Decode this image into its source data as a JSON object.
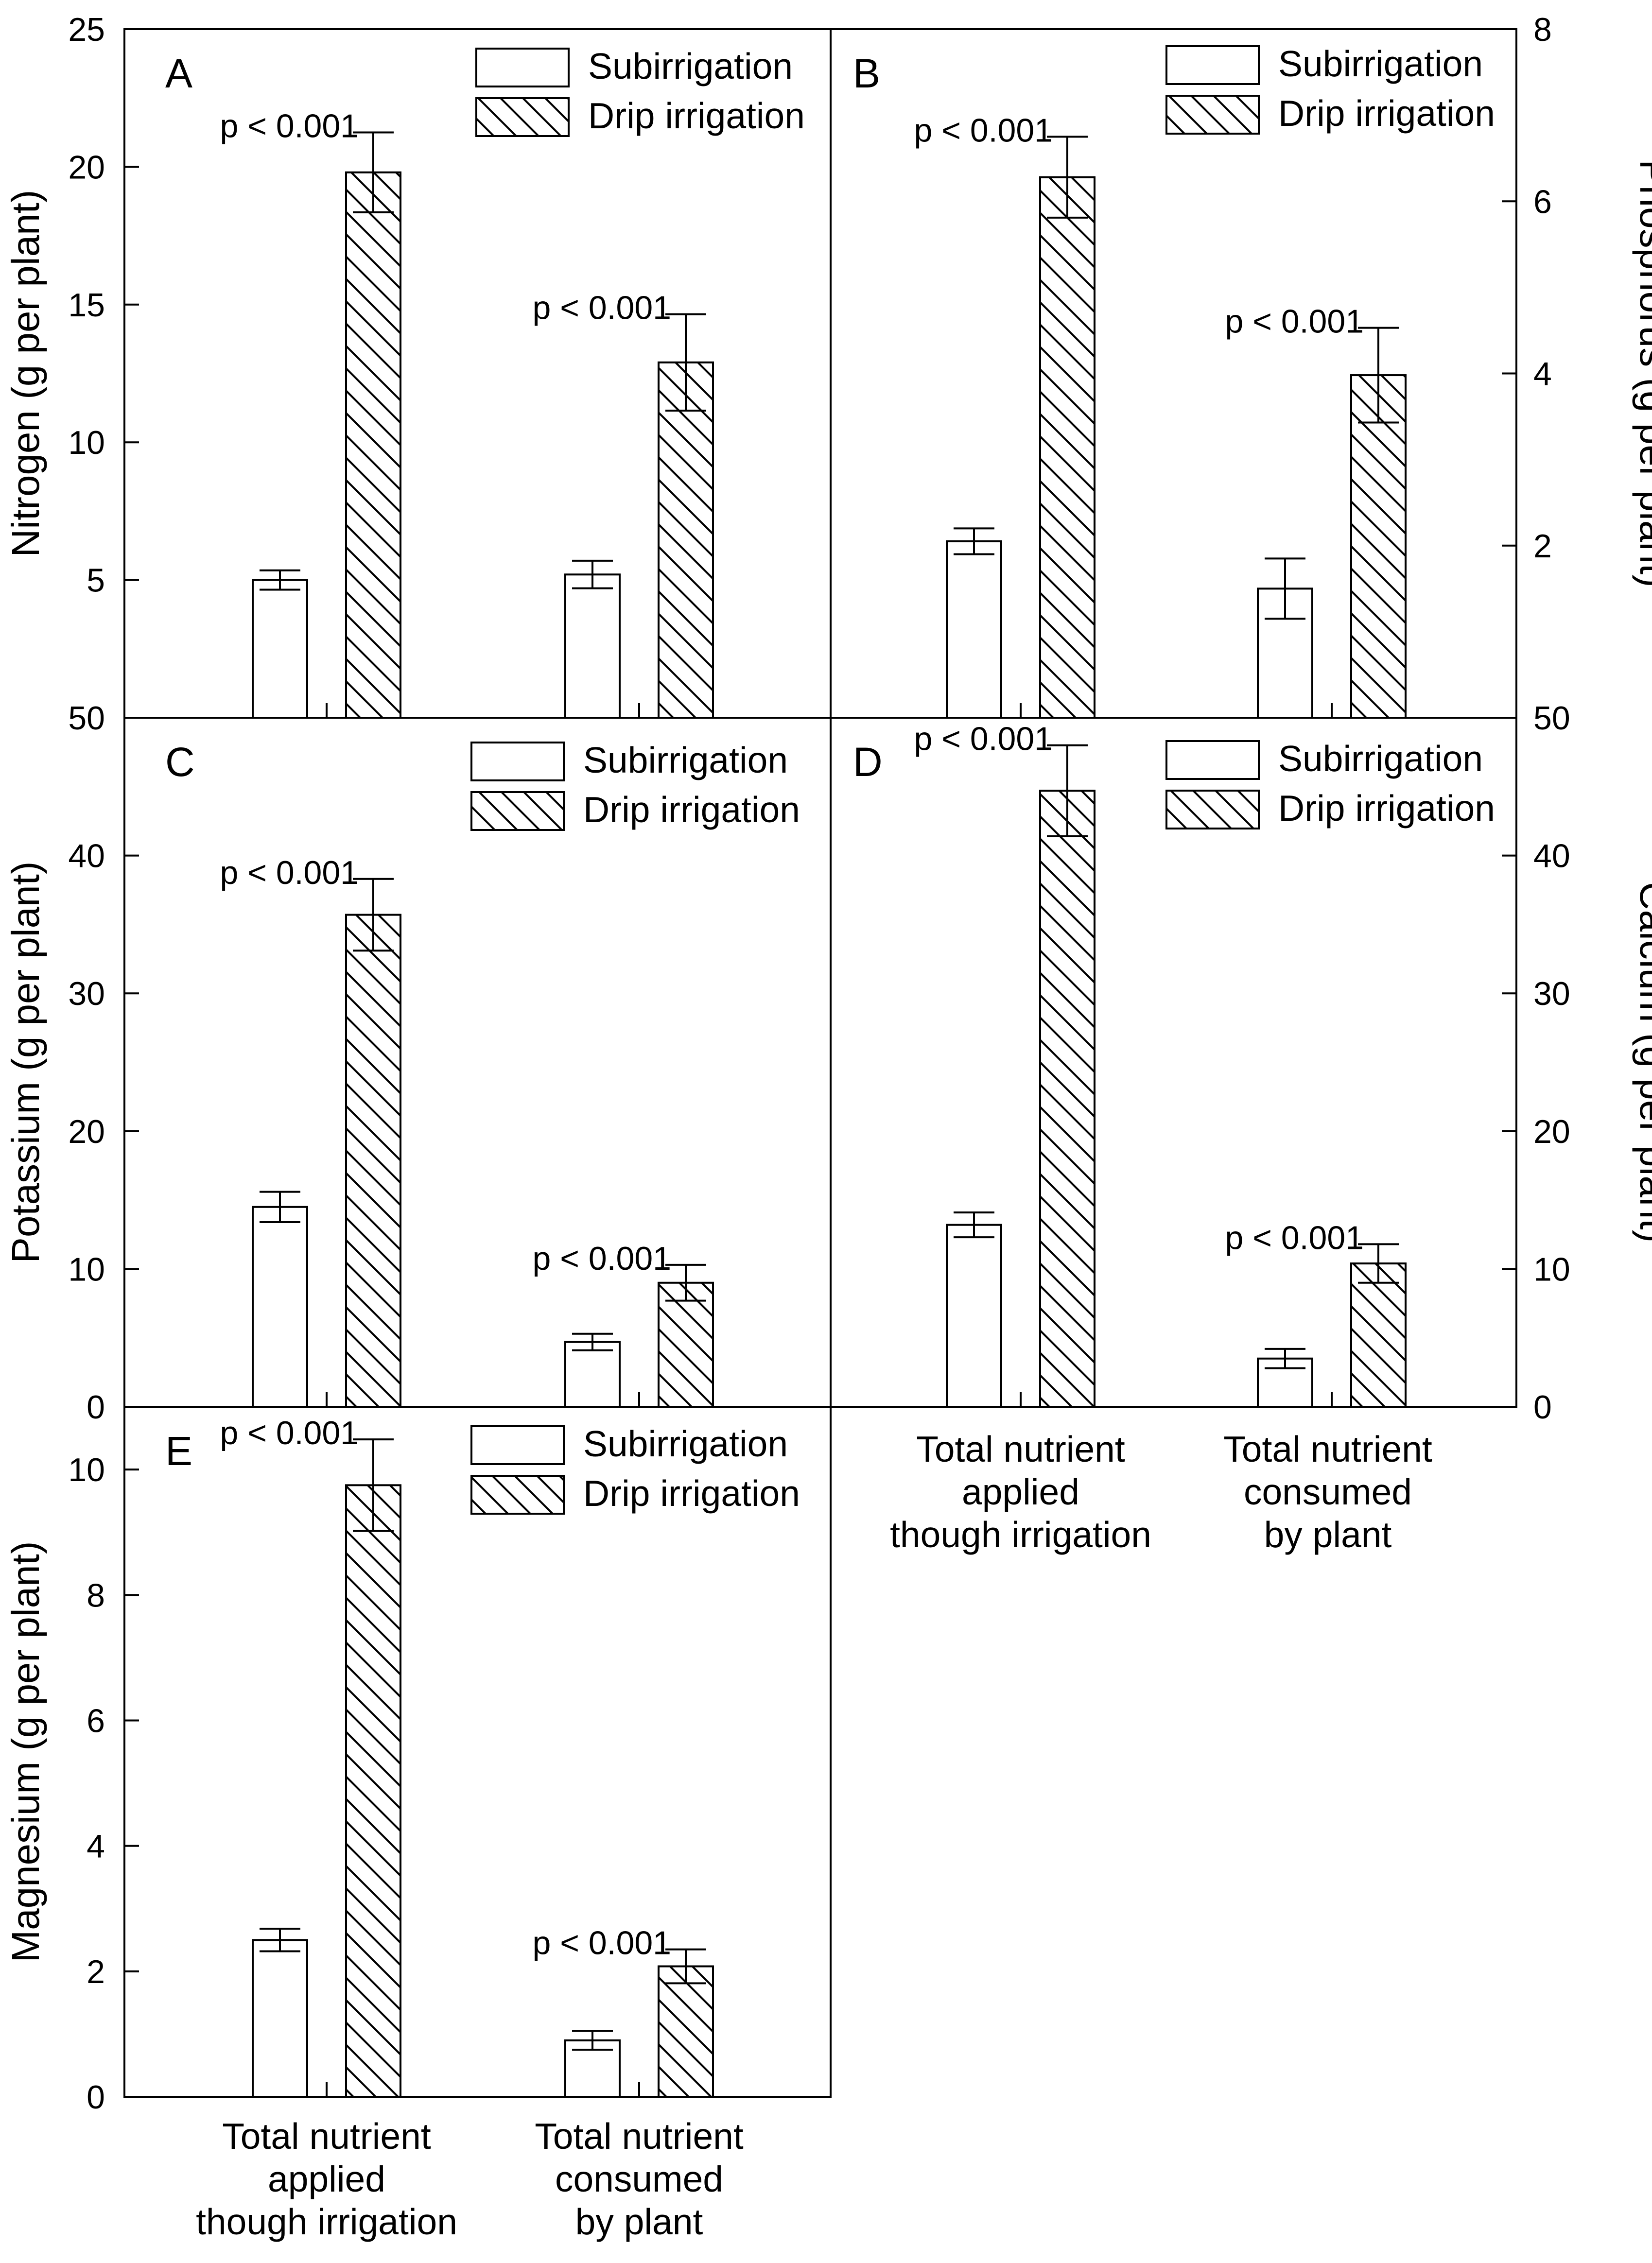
{
  "figure": {
    "legend": {
      "sub": "Subirrigation",
      "drip": "Drip irrigation"
    },
    "xcategories": [
      "Total nutrient applied though irrigation",
      "Total nutrient consumed by plant"
    ],
    "xlabel_lines": [
      [
        "Total nutrient",
        "applied",
        "though irrigation"
      ],
      [
        "Total nutrient",
        "consumed",
        "by plant"
      ]
    ]
  },
  "chart_data": [
    {
      "panel": "A",
      "type": "bar",
      "ylabel": "Nitrogen (g per plant)",
      "axis_side": "left",
      "ylim": [
        0,
        25
      ],
      "ytick_values": [
        5,
        10,
        15,
        20,
        25
      ],
      "ytick_labels": [
        "5",
        "10",
        "15",
        "20",
        "25"
      ],
      "categories": [
        "Total nutrient applied though irrigation",
        "Total nutrient consumed by plant"
      ],
      "series": [
        {
          "name": "Subirrigation",
          "values": [
            5.0,
            5.2
          ],
          "errors": [
            0.35,
            0.5
          ]
        },
        {
          "name": "Drip irrigation",
          "values": [
            19.8,
            12.9
          ],
          "errors": [
            1.45,
            1.75
          ]
        }
      ],
      "annotations": [
        "p < 0.001",
        "p < 0.001"
      ]
    },
    {
      "panel": "B",
      "type": "bar",
      "ylabel": "Phosphorus (g per plant)",
      "axis_side": "right",
      "ylim": [
        0,
        8
      ],
      "ytick_values": [
        2,
        4,
        6,
        8
      ],
      "ytick_labels": [
        "2",
        "4",
        "6",
        "8"
      ],
      "categories": [
        "Total nutrient applied though irrigation",
        "Total nutrient consumed by plant"
      ],
      "series": [
        {
          "name": "Subirrigation",
          "values": [
            2.05,
            1.5
          ],
          "errors": [
            0.15,
            0.35
          ]
        },
        {
          "name": "Drip irrigation",
          "values": [
            6.28,
            3.98
          ],
          "errors": [
            0.47,
            0.55
          ]
        }
      ],
      "annotations": [
        "p < 0.001",
        "p < 0.001"
      ]
    },
    {
      "panel": "C",
      "type": "bar",
      "ylabel": "Potassium (g per plant)",
      "axis_side": "left",
      "ylim": [
        0,
        50
      ],
      "ytick_values": [
        0,
        10,
        20,
        30,
        40,
        50
      ],
      "ytick_labels": [
        "0",
        "10",
        "20",
        "30",
        "40",
        "50"
      ],
      "categories": [
        "Total nutrient applied though irrigation",
        "Total nutrient consumed by plant"
      ],
      "series": [
        {
          "name": "Subirrigation",
          "values": [
            14.5,
            4.7
          ],
          "errors": [
            1.1,
            0.6
          ]
        },
        {
          "name": "Drip irrigation",
          "values": [
            35.7,
            9.0
          ],
          "errors": [
            2.6,
            1.3
          ]
        }
      ],
      "annotations": [
        "p < 0.001",
        "p < 0.001"
      ]
    },
    {
      "panel": "D",
      "type": "bar",
      "ylabel": "Calcium (g per plant)",
      "axis_side": "right",
      "ylim": [
        0,
        50
      ],
      "ytick_values": [
        0,
        10,
        20,
        30,
        40,
        50
      ],
      "ytick_labels": [
        "0",
        "10",
        "20",
        "30",
        "40",
        "50"
      ],
      "categories": [
        "Total nutrient applied though irrigation",
        "Total nutrient consumed by plant"
      ],
      "series": [
        {
          "name": "Subirrigation",
          "values": [
            13.2,
            3.5
          ],
          "errors": [
            0.9,
            0.7
          ]
        },
        {
          "name": "Drip irrigation",
          "values": [
            44.7,
            10.4
          ],
          "errors": [
            3.3,
            1.4
          ]
        }
      ],
      "annotations": [
        "p < 0.001",
        "p < 0.001"
      ]
    },
    {
      "panel": "E",
      "type": "bar",
      "ylabel": "Magnesium (g per plant)",
      "axis_side": "left",
      "ylim": [
        0,
        11
      ],
      "ytick_values": [
        0,
        2,
        4,
        6,
        8,
        10
      ],
      "ytick_labels": [
        "0",
        "2",
        "4",
        "6",
        "8",
        "10"
      ],
      "categories": [
        "Total nutrient applied though irrigation",
        "Total nutrient consumed by plant"
      ],
      "series": [
        {
          "name": "Subirrigation",
          "values": [
            2.5,
            0.9
          ],
          "errors": [
            0.18,
            0.15
          ]
        },
        {
          "name": "Drip irrigation",
          "values": [
            9.75,
            2.08
          ],
          "errors": [
            0.73,
            0.27
          ]
        }
      ],
      "annotations": [
        "p < 0.001",
        "p < 0.001"
      ]
    }
  ]
}
